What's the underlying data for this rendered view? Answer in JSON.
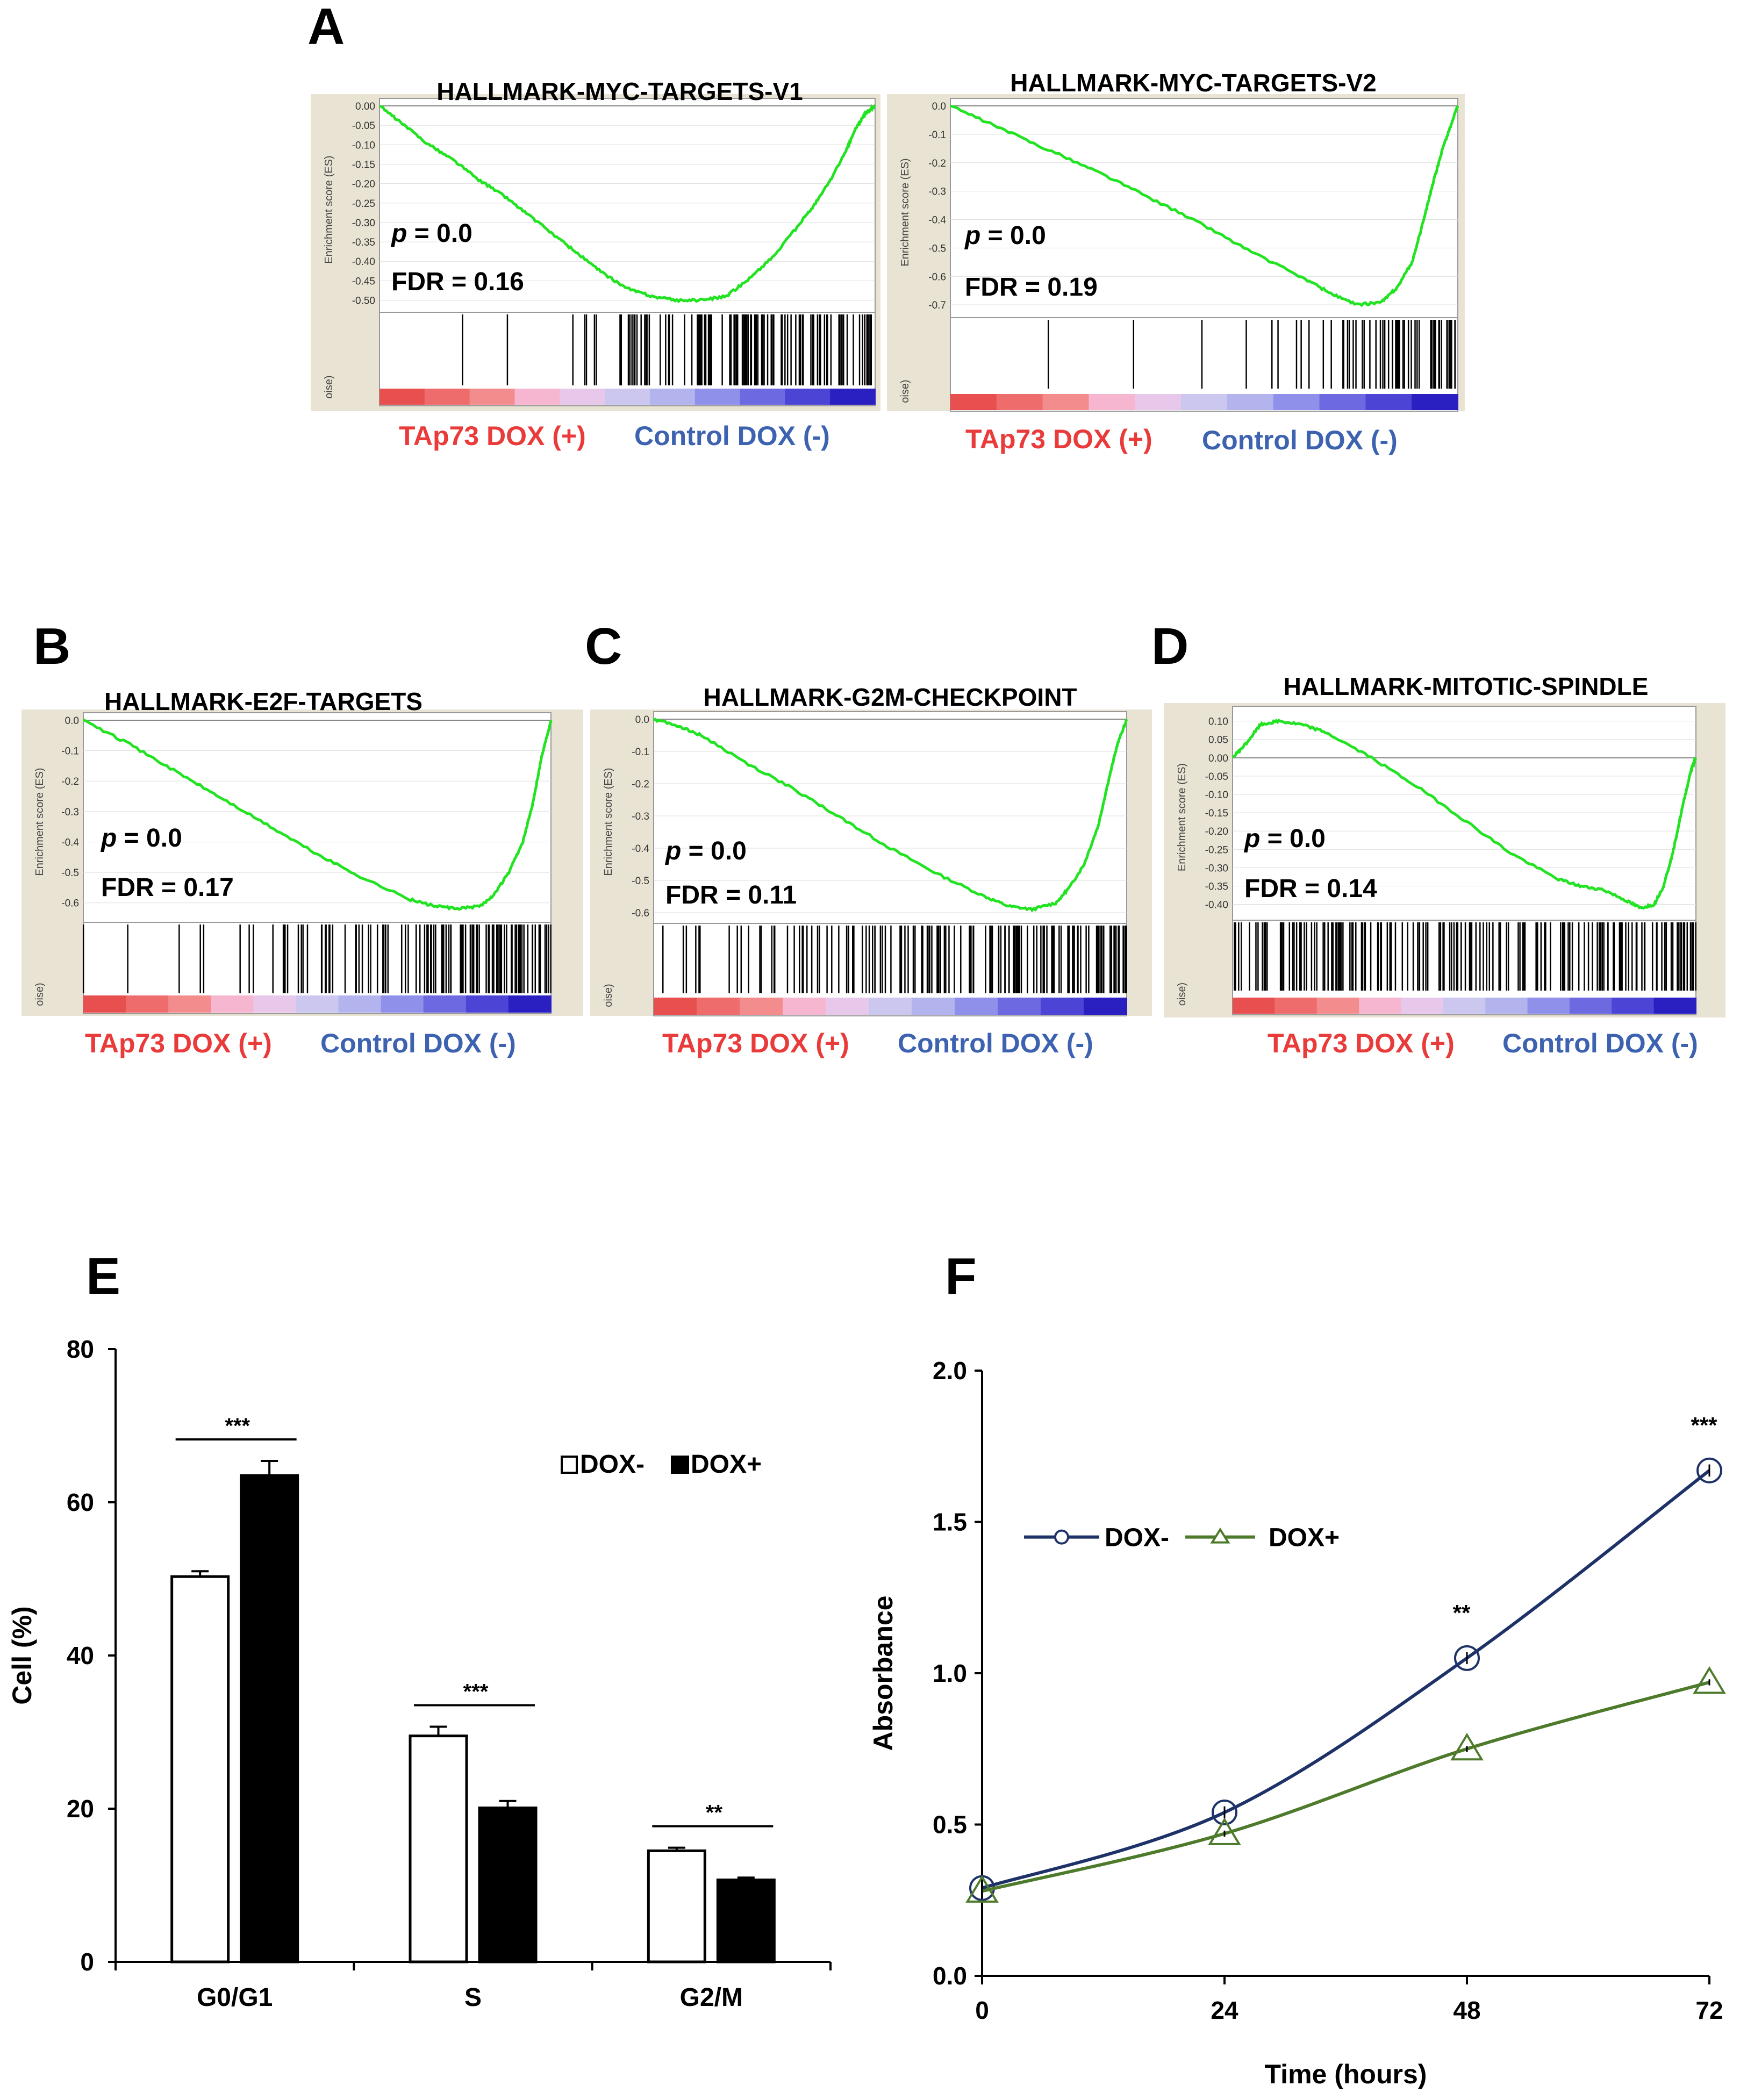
{
  "panel_labels": {
    "a": "A",
    "b": "B",
    "c": "C",
    "d": "D",
    "e": "E",
    "f": "F"
  },
  "gsea_common": {
    "y_axis_label": "Enrichment score (ES)",
    "rank_axis_label": "oise)",
    "legend_red": "TAp73 DOX (+)",
    "legend_blue": "Control DOX (-)",
    "colors": {
      "curve": "#22e322",
      "red": "#ea3b3b",
      "blue": "#3c62b0",
      "frame": "#e8e3d3"
    }
  },
  "chart_data": [
    {
      "id": "A1",
      "type": "line",
      "title": "HALLMARK-MYC-TARGETS-V1",
      "p_text": "p",
      "p_value": "= 0.0",
      "fdr_text": "FDR = 0.16",
      "ylim": [
        -0.52,
        0.0
      ],
      "yticks": [
        "0.00",
        "-0.05",
        "-0.10",
        "-0.15",
        "-0.20",
        "-0.25",
        "-0.30",
        "-0.35",
        "-0.40",
        "-0.45",
        "-0.50"
      ],
      "ytick_values": [
        0,
        -0.05,
        -0.1,
        -0.15,
        -0.2,
        -0.25,
        -0.3,
        -0.35,
        -0.4,
        -0.45,
        -0.5
      ],
      "x": [
        0,
        0.05,
        0.1,
        0.15,
        0.2,
        0.25,
        0.3,
        0.35,
        0.4,
        0.45,
        0.5,
        0.55,
        0.6,
        0.65,
        0.7,
        0.75,
        0.8,
        0.85,
        0.88,
        0.91,
        0.94,
        0.96,
        0.98,
        1.0
      ],
      "es": [
        0,
        -0.05,
        -0.1,
        -0.14,
        -0.19,
        -0.23,
        -0.28,
        -0.33,
        -0.38,
        -0.43,
        -0.47,
        -0.49,
        -0.5,
        -0.5,
        -0.49,
        -0.44,
        -0.38,
        -0.3,
        -0.25,
        -0.19,
        -0.12,
        -0.06,
        -0.02,
        0.0
      ],
      "hit_density": [
        0.02,
        0.02,
        0.03,
        0.05,
        0.1,
        0.25,
        0.6,
        0.8,
        0.85,
        0.9,
        0.85,
        0.8
      ],
      "rank_split": 0.38
    },
    {
      "id": "A2",
      "type": "line",
      "title": "HALLMARK-MYC-TARGETS-V2",
      "p_text": "p",
      "p_value": "= 0.0",
      "fdr_text": "FDR = 0.19",
      "ylim": [
        -0.73,
        0.0
      ],
      "yticks": [
        "0.0",
        "-0.1",
        "-0.2",
        "-0.3",
        "-0.4",
        "-0.5",
        "-0.6",
        "-0.7"
      ],
      "ytick_values": [
        0,
        -0.1,
        -0.2,
        -0.3,
        -0.4,
        -0.5,
        -0.6,
        -0.7
      ],
      "x": [
        0,
        0.1,
        0.2,
        0.3,
        0.4,
        0.5,
        0.6,
        0.7,
        0.75,
        0.8,
        0.85,
        0.88,
        0.91,
        0.93,
        0.95,
        0.97,
        0.99,
        1.0
      ],
      "es": [
        0,
        -0.08,
        -0.16,
        -0.24,
        -0.33,
        -0.42,
        -0.52,
        -0.61,
        -0.66,
        -0.7,
        -0.69,
        -0.64,
        -0.55,
        -0.42,
        -0.28,
        -0.15,
        -0.05,
        0.0
      ],
      "hit_density": [
        0.0,
        0.02,
        0.03,
        0.02,
        0.04,
        0.05,
        0.06,
        0.1,
        0.2,
        0.5,
        0.9,
        0.95
      ],
      "rank_split": 0.45
    },
    {
      "id": "B",
      "type": "line",
      "title": "HALLMARK-E2F-TARGETS",
      "p_text": "p",
      "p_value": "= 0.0",
      "fdr_text": "FDR = 0.17",
      "ylim": [
        -0.65,
        0.0
      ],
      "yticks": [
        "0.0",
        "-0.1",
        "-0.2",
        "-0.3",
        "-0.4",
        "-0.5",
        "-0.6"
      ],
      "ytick_values": [
        0,
        -0.1,
        -0.2,
        -0.3,
        -0.4,
        -0.5,
        -0.6
      ],
      "x": [
        0,
        0.1,
        0.2,
        0.3,
        0.4,
        0.5,
        0.6,
        0.7,
        0.75,
        0.8,
        0.85,
        0.88,
        0.91,
        0.94,
        0.96,
        0.98,
        1.0
      ],
      "es": [
        0,
        -0.08,
        -0.17,
        -0.26,
        -0.35,
        -0.44,
        -0.52,
        -0.59,
        -0.61,
        -0.62,
        -0.61,
        -0.57,
        -0.5,
        -0.4,
        -0.28,
        -0.12,
        0.0
      ],
      "hit_density": [
        0.05,
        0.06,
        0.06,
        0.08,
        0.2,
        0.35,
        0.45,
        0.55,
        0.65,
        0.75,
        0.85,
        0.95
      ],
      "rank_split": 0.42
    },
    {
      "id": "C",
      "type": "line",
      "title": "HALLMARK-G2M-CHECKPOINT",
      "p_text": "p",
      "p_value": "= 0.0",
      "fdr_text": "FDR = 0.11",
      "ylim": [
        -0.62,
        0.0
      ],
      "yticks": [
        "0.0",
        "-0.1",
        "-0.2",
        "-0.3",
        "-0.4",
        "-0.5",
        "-0.6"
      ],
      "ytick_values": [
        0,
        -0.1,
        -0.2,
        -0.3,
        -0.4,
        -0.5,
        -0.6
      ],
      "x": [
        0,
        0.05,
        0.1,
        0.2,
        0.3,
        0.4,
        0.5,
        0.6,
        0.7,
        0.75,
        0.8,
        0.85,
        0.88,
        0.91,
        0.94,
        0.96,
        0.98,
        1.0
      ],
      "es": [
        0,
        -0.02,
        -0.05,
        -0.14,
        -0.22,
        -0.31,
        -0.4,
        -0.48,
        -0.55,
        -0.58,
        -0.59,
        -0.57,
        -0.52,
        -0.45,
        -0.33,
        -0.2,
        -0.08,
        0.0
      ],
      "hit_density": [
        0.15,
        0.2,
        0.25,
        0.35,
        0.4,
        0.5,
        0.6,
        0.65,
        0.7,
        0.8,
        0.85,
        0.95
      ],
      "rank_split": 0.44
    },
    {
      "id": "D",
      "type": "line",
      "title": "HALLMARK-MITOTIC-SPINDLE",
      "p_text": "p",
      "p_value": "= 0.0",
      "fdr_text": "FDR = 0.14",
      "ylim": [
        -0.43,
        0.12
      ],
      "yticks": [
        "0.10",
        "0.05",
        "0.00",
        "-0.05",
        "-0.10",
        "-0.15",
        "-0.20",
        "-0.25",
        "-0.30",
        "-0.35",
        "-0.40"
      ],
      "ytick_values": [
        0.1,
        0.05,
        0,
        -0.05,
        -0.1,
        -0.15,
        -0.2,
        -0.25,
        -0.3,
        -0.35,
        -0.4
      ],
      "x": [
        0,
        0.03,
        0.06,
        0.1,
        0.15,
        0.2,
        0.3,
        0.4,
        0.5,
        0.6,
        0.7,
        0.75,
        0.8,
        0.85,
        0.88,
        0.91,
        0.93,
        0.95,
        0.97,
        0.99,
        1.0
      ],
      "es": [
        0,
        0.04,
        0.09,
        0.1,
        0.09,
        0.07,
        0.0,
        -0.08,
        -0.17,
        -0.26,
        -0.33,
        -0.35,
        -0.36,
        -0.39,
        -0.41,
        -0.4,
        -0.35,
        -0.26,
        -0.14,
        -0.03,
        0.0
      ],
      "hit_density": [
        0.6,
        0.65,
        0.7,
        0.7,
        0.6,
        0.6,
        0.55,
        0.55,
        0.6,
        0.65,
        0.75,
        0.85
      ],
      "rank_split": 0.45
    },
    {
      "id": "E",
      "type": "bar",
      "title": "",
      "categories": [
        "G0/G1",
        "S",
        "G2/M"
      ],
      "series": [
        {
          "name": "DOX-",
          "color": "#ffffff",
          "values": [
            50.3,
            29.5,
            14.5
          ],
          "errors": [
            0.7,
            1.2,
            0.4
          ]
        },
        {
          "name": "DOX+",
          "color": "#000000",
          "values": [
            63.5,
            20.1,
            10.7
          ],
          "errors": [
            1.9,
            0.9,
            0.3
          ]
        }
      ],
      "significance": [
        "***",
        "***",
        "**"
      ],
      "xlabel": "",
      "ylabel": "Cell (%)",
      "ylim": [
        0,
        80
      ],
      "yticks": [
        "0",
        "20",
        "40",
        "60",
        "80"
      ],
      "ytick_values": [
        0,
        20,
        40,
        60,
        80
      ],
      "legend_labels": [
        "DOX-",
        "DOX+"
      ]
    },
    {
      "id": "F",
      "type": "line",
      "title": "",
      "x": [
        0,
        24,
        48,
        72
      ],
      "series": [
        {
          "name": "DOX-",
          "color": "#1e3268",
          "marker": "circle",
          "values": [
            0.29,
            0.54,
            1.05,
            1.67
          ],
          "errors": [
            0.02,
            0.02,
            0.02,
            0.02
          ]
        },
        {
          "name": "DOX+",
          "color": "#4e7a2c",
          "marker": "triangle",
          "values": [
            0.28,
            0.47,
            0.75,
            0.97
          ],
          "errors": [
            0.01,
            0.01,
            0.01,
            0.01
          ]
        }
      ],
      "significance": [
        {
          "x": 48,
          "label": "**"
        },
        {
          "x": 72,
          "label": "***"
        }
      ],
      "xlabel": "Time (hours)",
      "ylabel": "Absorbance",
      "xlim": [
        0,
        72
      ],
      "xticks": [
        "0",
        "24",
        "48",
        "72"
      ],
      "xtick_values": [
        0,
        24,
        48,
        72
      ],
      "ylim": [
        0,
        2.0
      ],
      "yticks": [
        "0.0",
        "0.5",
        "1.0",
        "1.5",
        "2.0"
      ],
      "ytick_values": [
        0,
        0.5,
        1.0,
        1.5,
        2.0
      ],
      "legend_labels": [
        "DOX-",
        "DOX+"
      ]
    }
  ]
}
